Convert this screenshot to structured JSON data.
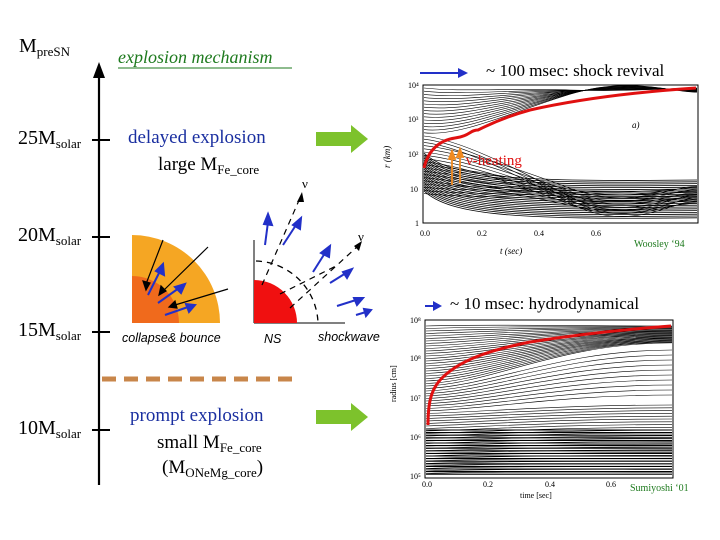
{
  "axis": {
    "label": "M",
    "label_sub": "preSN",
    "ticks": [
      {
        "main": "25M",
        "sub": "solar"
      },
      {
        "main": "20M",
        "sub": "solar"
      },
      {
        "main": "15M",
        "sub": "solar"
      },
      {
        "main": "10M",
        "sub": "solar"
      }
    ]
  },
  "heading": "explosion mechanism",
  "delayed": {
    "title": "delayed explosion",
    "line1_main": "large M",
    "line1_sub": "Fe_core"
  },
  "prompt": {
    "title": "prompt explosion",
    "line1_main": "small M",
    "line1_sub": "Fe_core",
    "line2_open": "(M",
    "line2_sub": "ONeMg_core",
    "line2_close": ")"
  },
  "diagram_labels": {
    "collapse": "collapse& bounce",
    "ns": "NS",
    "shockwave": "shockwave",
    "nu1": "ν",
    "nu2": "ν"
  },
  "plot_top": {
    "caption": "~ 100 msec: shock revival",
    "heating": "ν-heating",
    "panel_tag": "a)",
    "credit": "Woosley ‘94",
    "ylabel": "r   (km)",
    "xlabel": "t   (sec)",
    "yticks": [
      "10⁴",
      "10³",
      "10²",
      "10",
      "1"
    ],
    "xticks": [
      "0.0",
      "0.2",
      "0.4",
      "0.6"
    ]
  },
  "plot_bottom": {
    "caption": "~ 10 msec: hydrodynamical",
    "credit": "Sumiyoshi ‘01",
    "ylabel": "radius [cm]",
    "xlabel": "time [sec]",
    "yticks": [
      "10⁸",
      "10⁸",
      "10⁷",
      "10⁶",
      "10⁵"
    ],
    "xticks": [
      "0.0",
      "0.2",
      "0.4",
      "0.6"
    ]
  },
  "colors": {
    "title_blue": "#1a2fa0",
    "heading_green": "#1e7a1e",
    "arrow_green": "#7dc22c",
    "outer_core": "#f5a623",
    "inner_core": "#f06a1c",
    "ns_red": "#f01010",
    "curve_red": "#e01010",
    "dashed_brown": "#c8864a"
  }
}
